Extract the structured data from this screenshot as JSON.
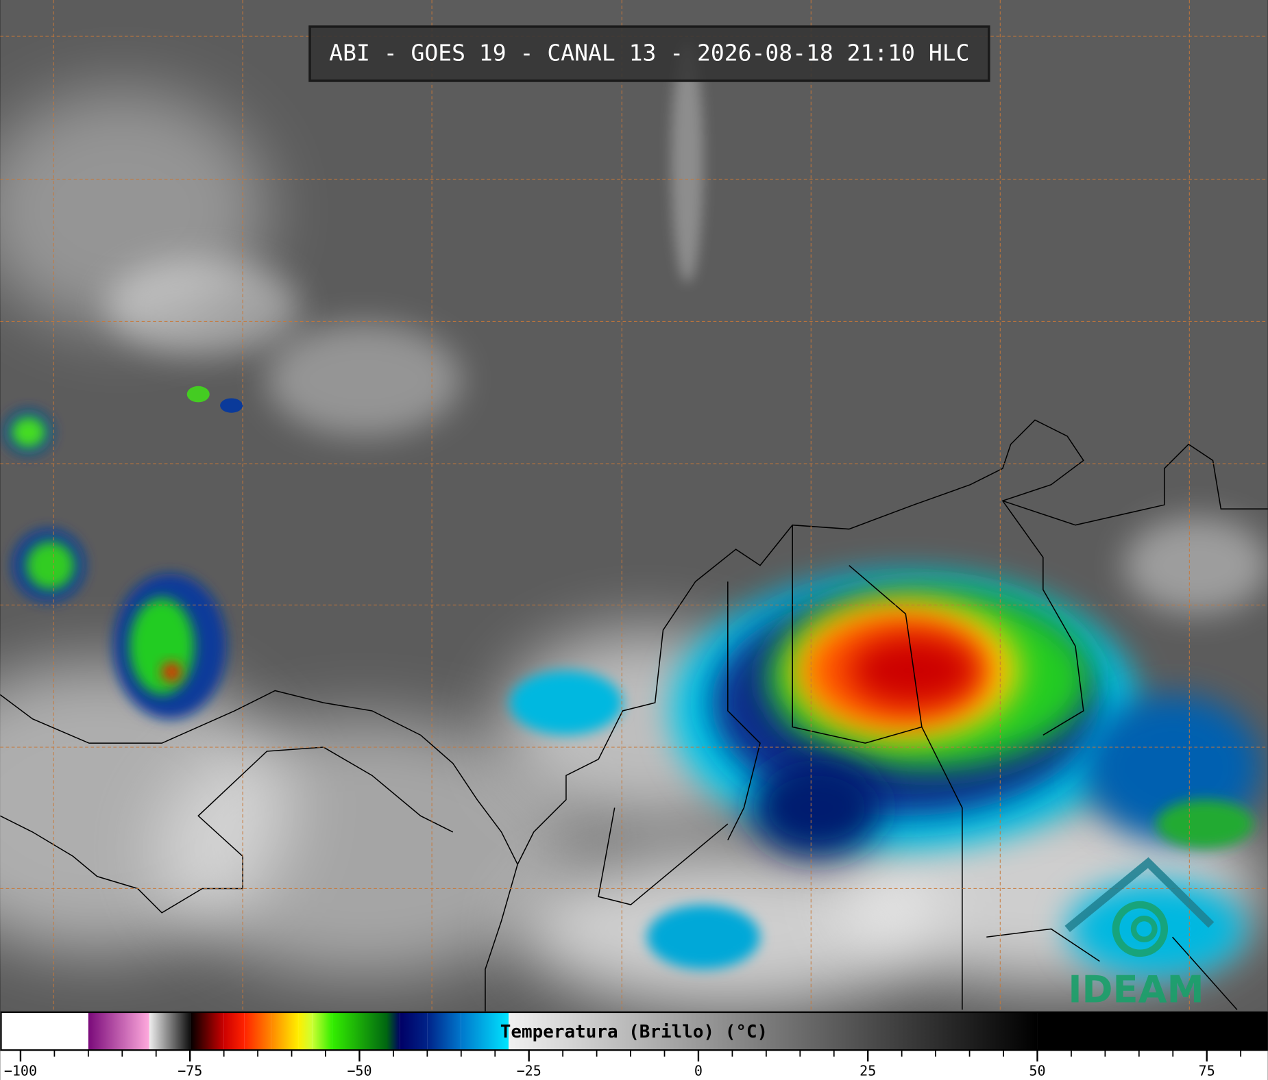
{
  "header": {
    "title": "ABI - GOES 19 - CANAL 13 - 2026-08-18 21:10 HLC"
  },
  "colorbar": {
    "label": "Temperatura (Brillo) (°C)",
    "lim": [
      -103,
      84
    ],
    "ticks": [
      {
        "value": -100,
        "label": "−100"
      },
      {
        "value": -75,
        "label": "−75"
      },
      {
        "value": -50,
        "label": "−50"
      },
      {
        "value": -25,
        "label": "−25"
      },
      0,
      25,
      50,
      75
    ],
    "minor_ticks": [
      -95,
      -90,
      -85,
      -80,
      -70,
      -65,
      -60,
      -55,
      -45,
      -40,
      -35,
      -30,
      -20,
      -15,
      -10,
      -5,
      5,
      10,
      15,
      20,
      30,
      35,
      40,
      45,
      55,
      60,
      65,
      70,
      80
    ],
    "colormap": [
      {
        "value": -103,
        "color": "#ffffff"
      },
      {
        "value": -90,
        "color": "#ffffff"
      },
      {
        "value": -90,
        "color": "#7a0a7a"
      },
      {
        "value": -81,
        "color": "#ffaadd"
      },
      {
        "value": -81,
        "color": "#eeeeee"
      },
      {
        "value": -75,
        "color": "#111111"
      },
      {
        "value": -75,
        "color": "#000000"
      },
      {
        "value": -70,
        "color": "#cc0000"
      },
      {
        "value": -67,
        "color": "#ff2200"
      },
      {
        "value": -63,
        "color": "#ff8800"
      },
      {
        "value": -59,
        "color": "#ffee00"
      },
      {
        "value": -57,
        "color": "#ccff33"
      },
      {
        "value": -54,
        "color": "#33ee00"
      },
      {
        "value": -46,
        "color": "#006611"
      },
      {
        "value": -44,
        "color": "#000066"
      },
      {
        "value": -40,
        "color": "#002288"
      },
      {
        "value": -35,
        "color": "#0077cc"
      },
      {
        "value": -28,
        "color": "#00e5ff"
      },
      {
        "value": -28,
        "color": "#f0f0f0"
      },
      {
        "value": 50,
        "color": "#000000"
      },
      {
        "value": 84,
        "color": "#000000"
      }
    ]
  },
  "logo": {
    "text": "IDEAM"
  }
}
